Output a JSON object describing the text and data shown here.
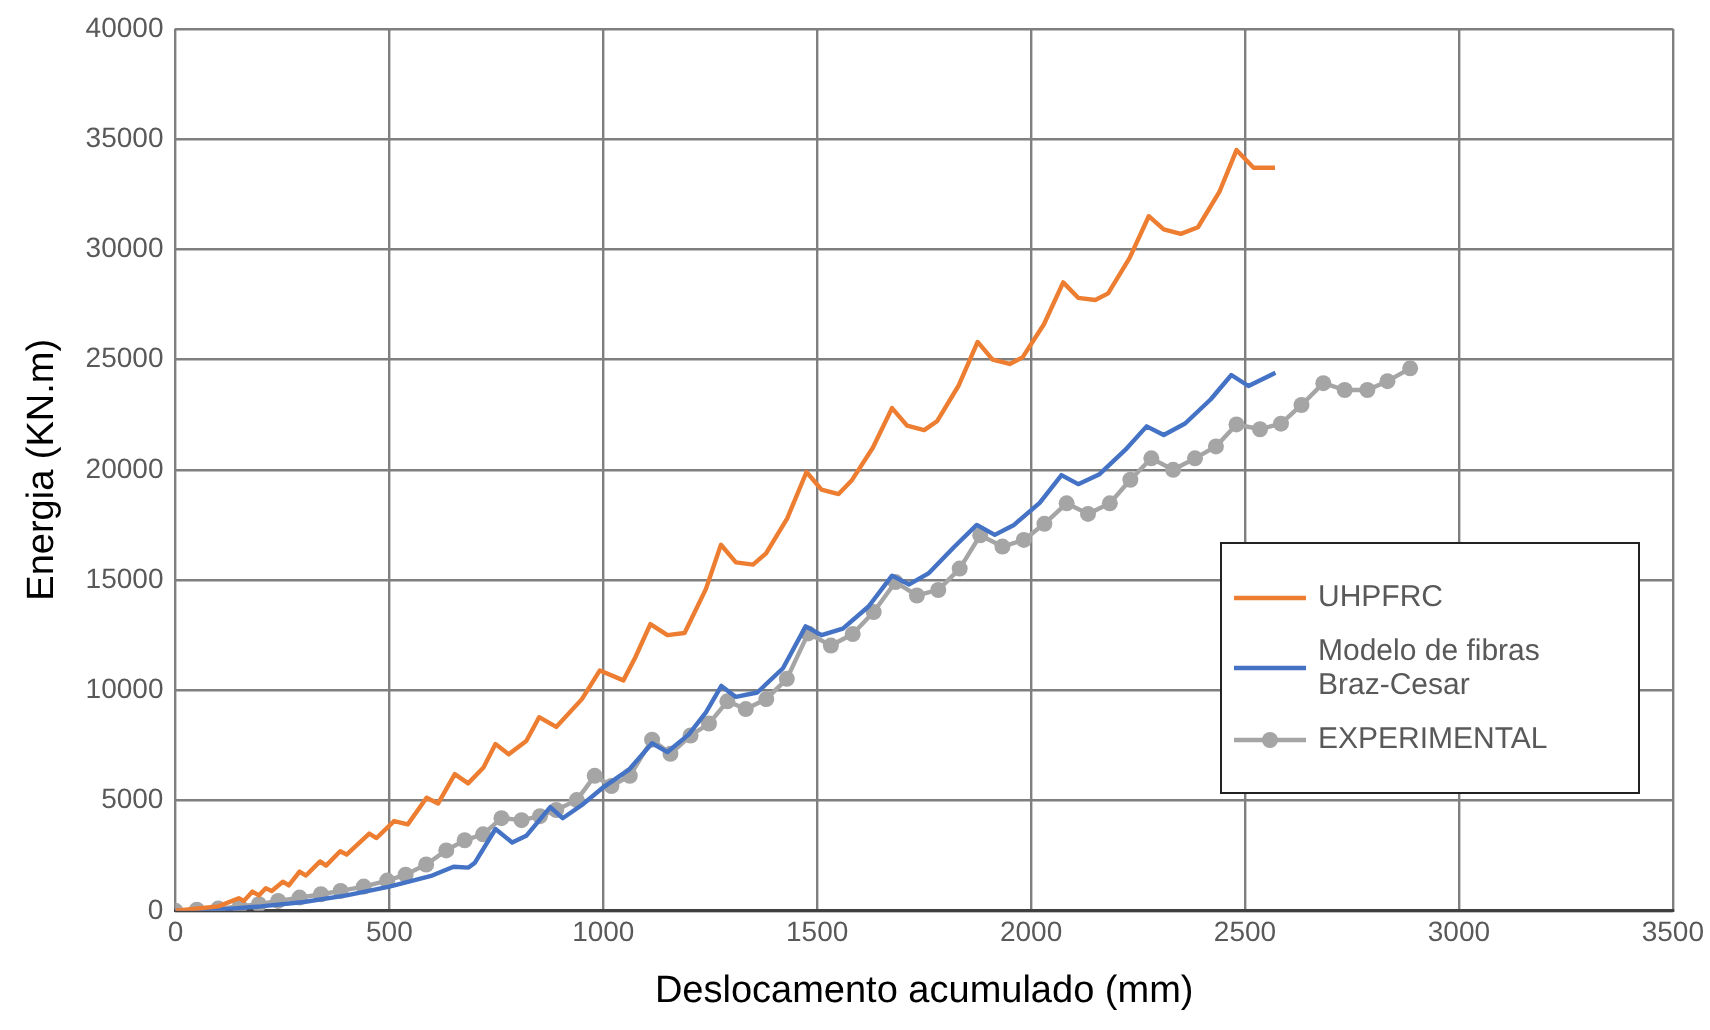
{
  "chart_data": {
    "type": "line",
    "xlabel": "Deslocamento acumulado (mm)",
    "ylabel": "Energia (KN.m)",
    "xlim": [
      0,
      3500
    ],
    "xticks": [
      0,
      500,
      1000,
      1500,
      2000,
      2500,
      3000,
      3500
    ],
    "ylim": [
      0,
      40000
    ],
    "yticks": [
      0,
      5000,
      10000,
      15000,
      20000,
      25000,
      30000,
      35000,
      40000
    ],
    "grid": true,
    "legend": "right",
    "series": [
      {
        "name": "UHPFRC",
        "color": "#ed7d31",
        "marker": "none",
        "x": [
          0,
          100,
          148,
          160,
          180,
          195,
          211,
          225,
          251,
          265,
          290,
          305,
          338,
          352,
          385,
          400,
          453,
          470,
          511,
          543,
          587,
          614,
          653,
          684,
          720,
          748,
          779,
          820,
          850,
          890,
          950,
          992,
          1047,
          1075,
          1110,
          1150,
          1190,
          1240,
          1275,
          1310,
          1350,
          1380,
          1430,
          1475,
          1510,
          1550,
          1580,
          1630,
          1675,
          1710,
          1750,
          1780,
          1830,
          1875,
          1910,
          1950,
          1980,
          2030,
          2075,
          2110,
          2150,
          2180,
          2230,
          2275,
          2310,
          2350,
          2390,
          2440,
          2480,
          2520,
          2570
        ],
        "values": [
          0,
          200,
          570,
          450,
          870,
          700,
          1020,
          900,
          1320,
          1150,
          1780,
          1600,
          2240,
          2050,
          2700,
          2550,
          3500,
          3300,
          4070,
          3920,
          5130,
          4870,
          6200,
          5780,
          6500,
          7560,
          7100,
          7700,
          8780,
          8340,
          9600,
          10900,
          10450,
          11500,
          13000,
          12500,
          12600,
          14600,
          16600,
          15800,
          15700,
          16200,
          17800,
          19900,
          19100,
          18900,
          19500,
          21000,
          22800,
          22000,
          21800,
          22200,
          23800,
          25800,
          25000,
          24800,
          25100,
          26600,
          28500,
          27800,
          27700,
          28000,
          29600,
          31500,
          30900,
          30700,
          31000,
          32600,
          34500,
          33700,
          33700
        ]
      },
      {
        "name": "Modelo de fibras Braz-Cesar",
        "color": "#4472c4",
        "marker": "none",
        "x": [
          0,
          100,
          200,
          300,
          400,
          500,
          600,
          650,
          685,
          700,
          748,
          787,
          820,
          876,
          905,
          950,
          1000,
          1060,
          1114,
          1150,
          1200,
          1240,
          1276,
          1310,
          1360,
          1420,
          1473,
          1510,
          1560,
          1620,
          1675,
          1715,
          1760,
          1820,
          1873,
          1915,
          1960,
          2020,
          2071,
          2110,
          2160,
          2220,
          2270,
          2310,
          2360,
          2420,
          2468,
          2508,
          2571
        ],
        "values": [
          0,
          50,
          200,
          400,
          700,
          1100,
          1600,
          2000,
          1960,
          2180,
          3710,
          3100,
          3400,
          4700,
          4200,
          4800,
          5600,
          6400,
          7600,
          7200,
          8000,
          9000,
          10200,
          9700,
          9900,
          11000,
          12900,
          12500,
          12800,
          13800,
          15200,
          14800,
          15300,
          16500,
          17500,
          17050,
          17500,
          18500,
          19760,
          19350,
          19800,
          20900,
          21970,
          21580,
          22100,
          23200,
          24300,
          23800,
          24400
        ]
      },
      {
        "name": "EXPERIMENTAL",
        "color": "#a5a5a5",
        "marker": "circle",
        "x": [
          0,
          50,
          100,
          150,
          195,
          240,
          290,
          340,
          386,
          440,
          495,
          538,
          586,
          633,
          676,
          719,
          762,
          809,
          852,
          890,
          938,
          980,
          1019,
          1062,
          1114,
          1157,
          1204,
          1247,
          1290,
          1333,
          1381,
          1429,
          1479,
          1532,
          1583,
          1632,
          1683,
          1733,
          1783,
          1833,
          1881,
          1933,
          1983,
          2031,
          2083,
          2133,
          2184,
          2232,
          2281,
          2332,
          2383,
          2432,
          2480,
          2535,
          2584,
          2632,
          2683,
          2733,
          2786,
          2833,
          2886
        ],
        "values": [
          0,
          50,
          100,
          200,
          300,
          450,
          600,
          750,
          900,
          1100,
          1370,
          1640,
          2100,
          2740,
          3200,
          3470,
          4200,
          4110,
          4290,
          4570,
          5020,
          6120,
          5660,
          6120,
          7760,
          7120,
          7950,
          8490,
          9500,
          9150,
          9600,
          10520,
          12580,
          12030,
          12550,
          13550,
          14910,
          14300,
          14550,
          15520,
          17030,
          16520,
          16820,
          17550,
          18480,
          18000,
          18480,
          19550,
          20520,
          20000,
          20520,
          21060,
          22060,
          21840,
          22090,
          22940,
          23930,
          23620,
          23620,
          24020,
          24600
        ]
      }
    ]
  }
}
